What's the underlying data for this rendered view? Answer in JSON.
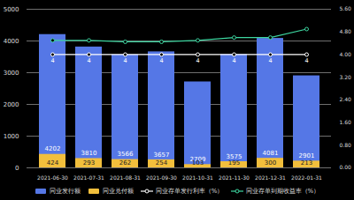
{
  "chart_data": {
    "type": "bar",
    "categories": [
      "2021-06-30",
      "2021-07-31",
      "2021-08-31",
      "2021-09-30",
      "2021-10-31",
      "2021-11-30",
      "2021-12-31",
      "2022-01-31"
    ],
    "series": [
      {
        "name": "同业发行额",
        "type": "bar",
        "color": "#5577e6",
        "values": [
          4202,
          3810,
          3566,
          3657,
          2709,
          3575,
          4081,
          2901
        ]
      },
      {
        "name": "同业兑付额",
        "type": "bar",
        "color": "#f2bf3c",
        "values": [
          424,
          293,
          262,
          254,
          103,
          195,
          300,
          213
        ]
      },
      {
        "name": "同业存单发行利率（%）",
        "type": "line",
        "axis": "y2",
        "color": "#ffffff",
        "marker": "circle",
        "values": [
          4,
          4,
          4,
          4,
          4,
          4,
          4,
          4
        ]
      },
      {
        "name": "同业存单到期收益率（%）",
        "type": "line",
        "axis": "y2",
        "color": "#3dd6a0",
        "marker": "circle",
        "values": [
          4.5,
          4.5,
          4.45,
          4.45,
          4.5,
          4.6,
          4.6,
          4.9
        ]
      }
    ],
    "ylim": [
      0,
      5000
    ],
    "yticks": [
      0,
      1000,
      2000,
      3000,
      4000,
      5000
    ],
    "y2lim": [
      0,
      5.6
    ],
    "y2ticks": [
      {
        "value": 0,
        "label": "0.00"
      },
      {
        "value": 0.8,
        "label": "0.80"
      },
      {
        "value": 1.6,
        "label": "1.60"
      },
      {
        "value": 2.4,
        "label": "2.40"
      },
      {
        "value": 3.2,
        "label": "3.20"
      },
      {
        "value": 4,
        "label": "4.00"
      },
      {
        "value": 4.8,
        "label": "4.80"
      },
      {
        "value": 5.6,
        "label": "5.60"
      }
    ],
    "grid": true,
    "legend": "bottom",
    "data_labels": true
  }
}
